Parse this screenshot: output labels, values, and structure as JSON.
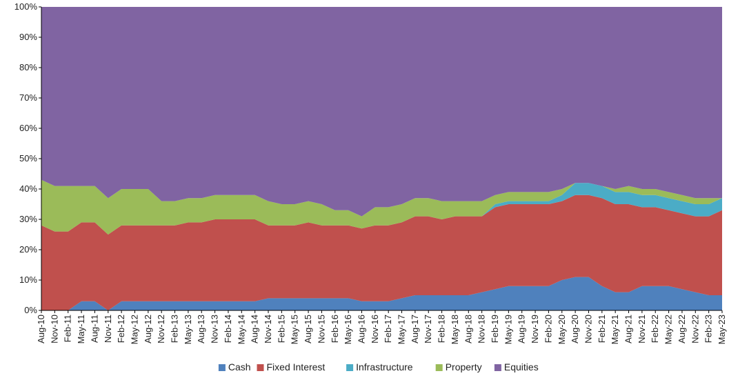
{
  "chart_data": {
    "type": "area",
    "stacked": true,
    "percent_stacked": true,
    "categories": [
      "Aug-10",
      "Nov-10",
      "Feb-11",
      "May-11",
      "Aug-11",
      "Nov-11",
      "Feb-12",
      "May-12",
      "Aug-12",
      "Nov-12",
      "Feb-13",
      "May-13",
      "Aug-13",
      "Nov-13",
      "Feb-14",
      "May-14",
      "Aug-14",
      "Nov-14",
      "Feb-15",
      "May-15",
      "Aug-15",
      "Nov-15",
      "Feb-16",
      "May-16",
      "Aug-16",
      "Nov-16",
      "Feb-17",
      "May-17",
      "Aug-17",
      "Nov-17",
      "Feb-18",
      "May-18",
      "Aug-18",
      "Nov-18",
      "Feb-19",
      "May-19",
      "Aug-19",
      "Nov-19",
      "Feb-20",
      "May-20",
      "Aug-20",
      "Nov-20",
      "Feb-21",
      "May-21",
      "Aug-21",
      "Nov-21",
      "Feb-22",
      "May-22",
      "Aug-22",
      "Nov-22",
      "Feb-23",
      "May-23"
    ],
    "series": [
      {
        "name": "Cash",
        "color": "#4f81bd",
        "values": [
          0,
          0,
          0,
          3,
          3,
          0,
          3,
          3,
          3,
          3,
          3,
          3,
          3,
          3,
          3,
          3,
          3,
          4,
          4,
          4,
          4,
          4,
          4,
          4,
          3,
          3,
          3,
          4,
          5,
          5,
          5,
          5,
          5,
          6,
          7,
          8,
          8,
          8,
          8,
          10,
          11,
          11,
          8,
          6,
          6,
          8,
          8,
          8,
          7,
          6,
          5,
          5
        ]
      },
      {
        "name": "Fixed Interest",
        "color": "#c0504d",
        "values": [
          28,
          26,
          26,
          26,
          26,
          25,
          25,
          25,
          25,
          25,
          25,
          26,
          26,
          27,
          27,
          27,
          27,
          24,
          24,
          24,
          25,
          24,
          24,
          24,
          24,
          25,
          25,
          25,
          26,
          26,
          25,
          26,
          26,
          25,
          27,
          27,
          27,
          27,
          27,
          26,
          27,
          27,
          29,
          29,
          29,
          26,
          26,
          25,
          25,
          25,
          26,
          28
        ]
      },
      {
        "name": "Infrastructure",
        "color": "#4bacc6",
        "values": [
          0,
          0,
          0,
          0,
          0,
          0,
          0,
          0,
          0,
          0,
          0,
          0,
          0,
          0,
          0,
          0,
          0,
          0,
          0,
          0,
          0,
          0,
          0,
          0,
          0,
          0,
          0,
          0,
          0,
          0,
          0,
          0,
          0,
          0,
          1,
          1,
          1,
          1,
          1,
          2,
          4,
          4,
          4,
          4,
          4,
          4,
          4,
          4,
          4,
          4,
          4,
          4
        ]
      },
      {
        "name": "Property",
        "color": "#9bbb59",
        "values": [
          15,
          15,
          15,
          12,
          12,
          12,
          12,
          12,
          12,
          8,
          8,
          8,
          8,
          8,
          8,
          8,
          8,
          8,
          7,
          7,
          7,
          7,
          5,
          5,
          4,
          6,
          6,
          6,
          6,
          6,
          6,
          5,
          5,
          5,
          3,
          3,
          3,
          3,
          3,
          2,
          0,
          0,
          0,
          1,
          2,
          2,
          2,
          2,
          2,
          2,
          2,
          0
        ]
      },
      {
        "name": "Equities",
        "color": "#8064a2",
        "values": [
          57,
          59,
          59,
          59,
          59,
          63,
          60,
          60,
          60,
          64,
          64,
          63,
          63,
          62,
          62,
          62,
          62,
          64,
          65,
          65,
          64,
          65,
          67,
          67,
          69,
          66,
          66,
          65,
          63,
          63,
          64,
          64,
          64,
          64,
          62,
          61,
          61,
          61,
          61,
          60,
          58,
          58,
          59,
          60,
          59,
          60,
          60,
          61,
          62,
          63,
          63,
          63
        ]
      }
    ],
    "y_axis": {
      "min": 0,
      "max": 100,
      "step": 10,
      "format": "percent",
      "tick_labels": [
        "0%",
        "10%",
        "20%",
        "30%",
        "40%",
        "50%",
        "60%",
        "70%",
        "80%",
        "90%",
        "100%"
      ]
    },
    "x_axis": {
      "label_rotation": -90
    },
    "legend": {
      "position": "bottom"
    },
    "grid": false
  }
}
